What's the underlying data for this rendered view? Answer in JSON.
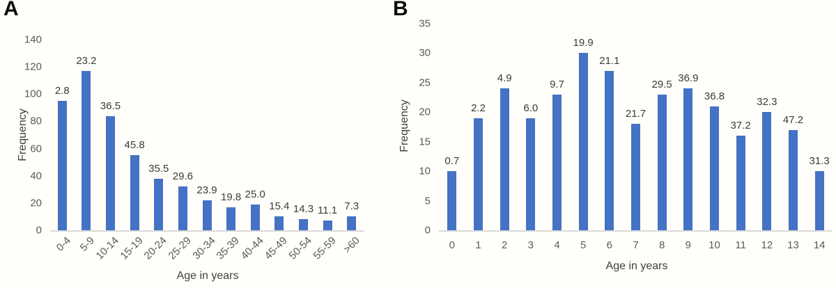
{
  "chart_data": [
    {
      "type": "bar",
      "panel_label": "A",
      "title": "",
      "xlabel": "Age in years",
      "ylabel": "Frequency",
      "categories": [
        "0-4",
        "5-9",
        "10-14",
        "15-19",
        "20-24",
        "25-29",
        "30-34",
        "35-39",
        "40-44",
        "45-49",
        "50-54",
        "55-59",
        ">60"
      ],
      "values": [
        95,
        117,
        84,
        55,
        38,
        32,
        22,
        17,
        19,
        10,
        8,
        7,
        10
      ],
      "bar_labels": [
        "2.8",
        "23.2",
        "36.5",
        "45.8",
        "35.5",
        "29.6",
        "23.9",
        "19.8",
        "25.0",
        "15.4",
        "14.3",
        "11.1",
        "7.3"
      ],
      "ylim": [
        0,
        140
      ],
      "yticks": [
        0,
        20,
        40,
        60,
        80,
        100,
        120,
        140
      ],
      "grid": false,
      "legend": "none",
      "bar_color": "#4472c4",
      "x_tick_rotation_deg": 45
    },
    {
      "type": "bar",
      "panel_label": "B",
      "title": "",
      "xlabel": "Age in years",
      "ylabel": "Frequency",
      "categories": [
        "0",
        "1",
        "2",
        "3",
        "4",
        "5",
        "6",
        "7",
        "8",
        "9",
        "10",
        "11",
        "12",
        "13",
        "14"
      ],
      "values": [
        10,
        19,
        24,
        19,
        23,
        30,
        27,
        18,
        23,
        24,
        21,
        16,
        20,
        17,
        10
      ],
      "bar_labels": [
        "0.7",
        "2.2",
        "4.9",
        "6.0",
        "9.7",
        "19.9",
        "21.1",
        "21.7",
        "29.5",
        "36.9",
        "36.8",
        "37.2",
        "32.3",
        "47.2",
        "31.3"
      ],
      "ylim": [
        0,
        35
      ],
      "yticks": [
        0,
        5,
        10,
        15,
        20,
        25,
        30,
        35
      ],
      "grid": false,
      "legend": "none",
      "bar_color": "#4472c4",
      "x_tick_rotation_deg": 0
    }
  ],
  "colors": {
    "bar": "#4472c4",
    "axis_line": "#d9d9d9",
    "tick_text": "#595959",
    "title_text": "#404040",
    "value_label_text": "#3a3a3a",
    "background": "#fffefa"
  }
}
